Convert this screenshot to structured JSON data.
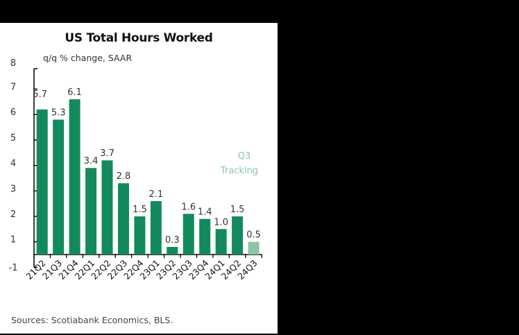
{
  "chart_data": {
    "type": "bar",
    "title": "US Total Hours Worked",
    "ylabel": "q/q % change, SAAR",
    "xlabel": "",
    "categories": [
      "21Q2",
      "21Q3",
      "21Q4",
      "22Q1",
      "22Q2",
      "22Q3",
      "22Q4",
      "23Q1",
      "23Q2",
      "23Q3",
      "23Q4",
      "24Q1",
      "24Q2",
      "24Q3"
    ],
    "values": [
      5.7,
      5.3,
      6.1,
      3.4,
      3.7,
      2.8,
      1.5,
      2.1,
      0.3,
      1.6,
      1.4,
      1.0,
      1.5,
      0.5
    ],
    "data_labels": [
      "5.7",
      "5.3",
      "6.1",
      "3.4",
      "3.7",
      "2.8",
      "1.5",
      "2.1",
      "0.3",
      "1.6",
      "1.4",
      "1.0",
      "1.5",
      "0.5"
    ],
    "highlight": {
      "index": 13,
      "label": "Q3 Tracking",
      "color": "#8cc5a6"
    },
    "yticks": [
      "8",
      "7",
      "6",
      "5",
      "4",
      "3",
      "2",
      "1",
      "-1"
    ],
    "ylim": [
      -1,
      8
    ],
    "grid": false,
    "legend": null,
    "bar_color": "#138a5c",
    "annotation": "Q3\nTracking",
    "source": "Sources: Scotiabank Economics, BLS."
  },
  "header": {
    "title": "US Total Hours Worked",
    "subtitle": "q/q % change, SAAR"
  },
  "annotation": {
    "line1": "Q3",
    "line2": "Tracking",
    "color": "#8cc5a6"
  },
  "footer": {
    "source": "Sources: Scotiabank Economics, BLS."
  }
}
